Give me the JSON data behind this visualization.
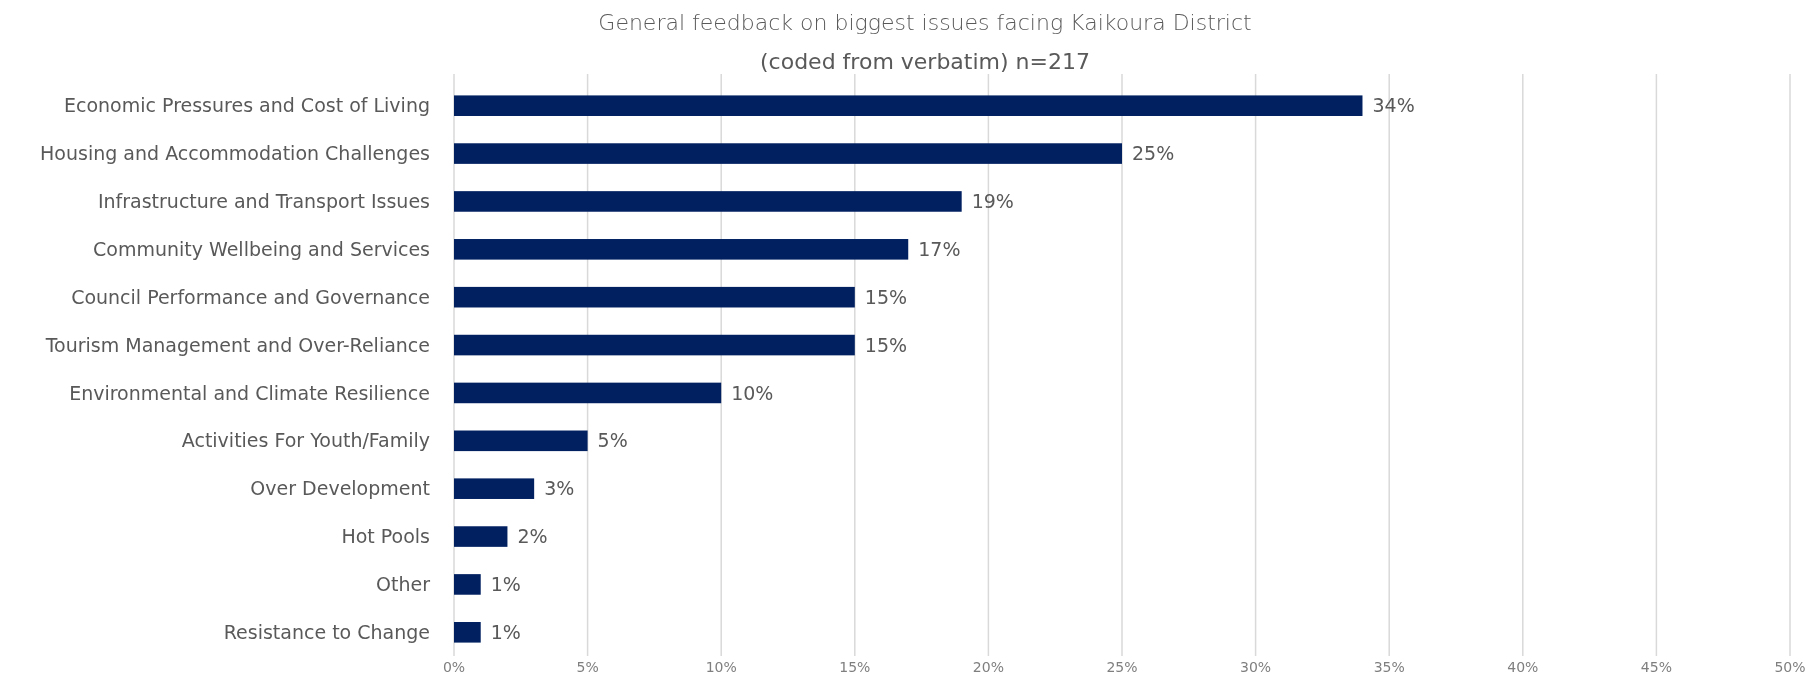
{
  "chart_data": {
    "type": "bar",
    "orientation": "horizontal",
    "title": "General feedback on biggest issues facing Kaikoura District",
    "subtitle": "(coded from verbatim) n=217",
    "categories": [
      "Economic Pressures and Cost of Living",
      "Housing and Accommodation Challenges",
      "Infrastructure and Transport Issues",
      "Community Wellbeing and Services",
      "Council Performance and Governance",
      "Tourism Management and Over-Reliance",
      "Environmental and Climate Resilience",
      "Activities For Youth/Family",
      "Over Development",
      "Hot Pools",
      "Other",
      "Resistance to Change"
    ],
    "values": [
      34,
      25,
      19,
      17,
      15,
      15,
      10,
      5,
      3,
      2,
      1,
      1
    ],
    "value_labels": [
      "34%",
      "25%",
      "19%",
      "17%",
      "15%",
      "15%",
      "10%",
      "5%",
      "3%",
      "2%",
      "1%",
      "1%"
    ],
    "color": "#002060",
    "grid": "x",
    "xlim": [
      0,
      50
    ],
    "xticks": [
      {
        "value": 0,
        "label": "0%"
      },
      {
        "value": 5,
        "label": "5%"
      },
      {
        "value": 10,
        "label": "10%"
      },
      {
        "value": 15,
        "label": "15%"
      },
      {
        "value": 20,
        "label": "20%"
      },
      {
        "value": 25,
        "label": "25%"
      },
      {
        "value": 30,
        "label": "30%"
      },
      {
        "value": 35,
        "label": "35%"
      },
      {
        "value": 40,
        "label": "40%"
      },
      {
        "value": 45,
        "label": "45%"
      },
      {
        "value": 50,
        "label": "50%"
      }
    ]
  }
}
